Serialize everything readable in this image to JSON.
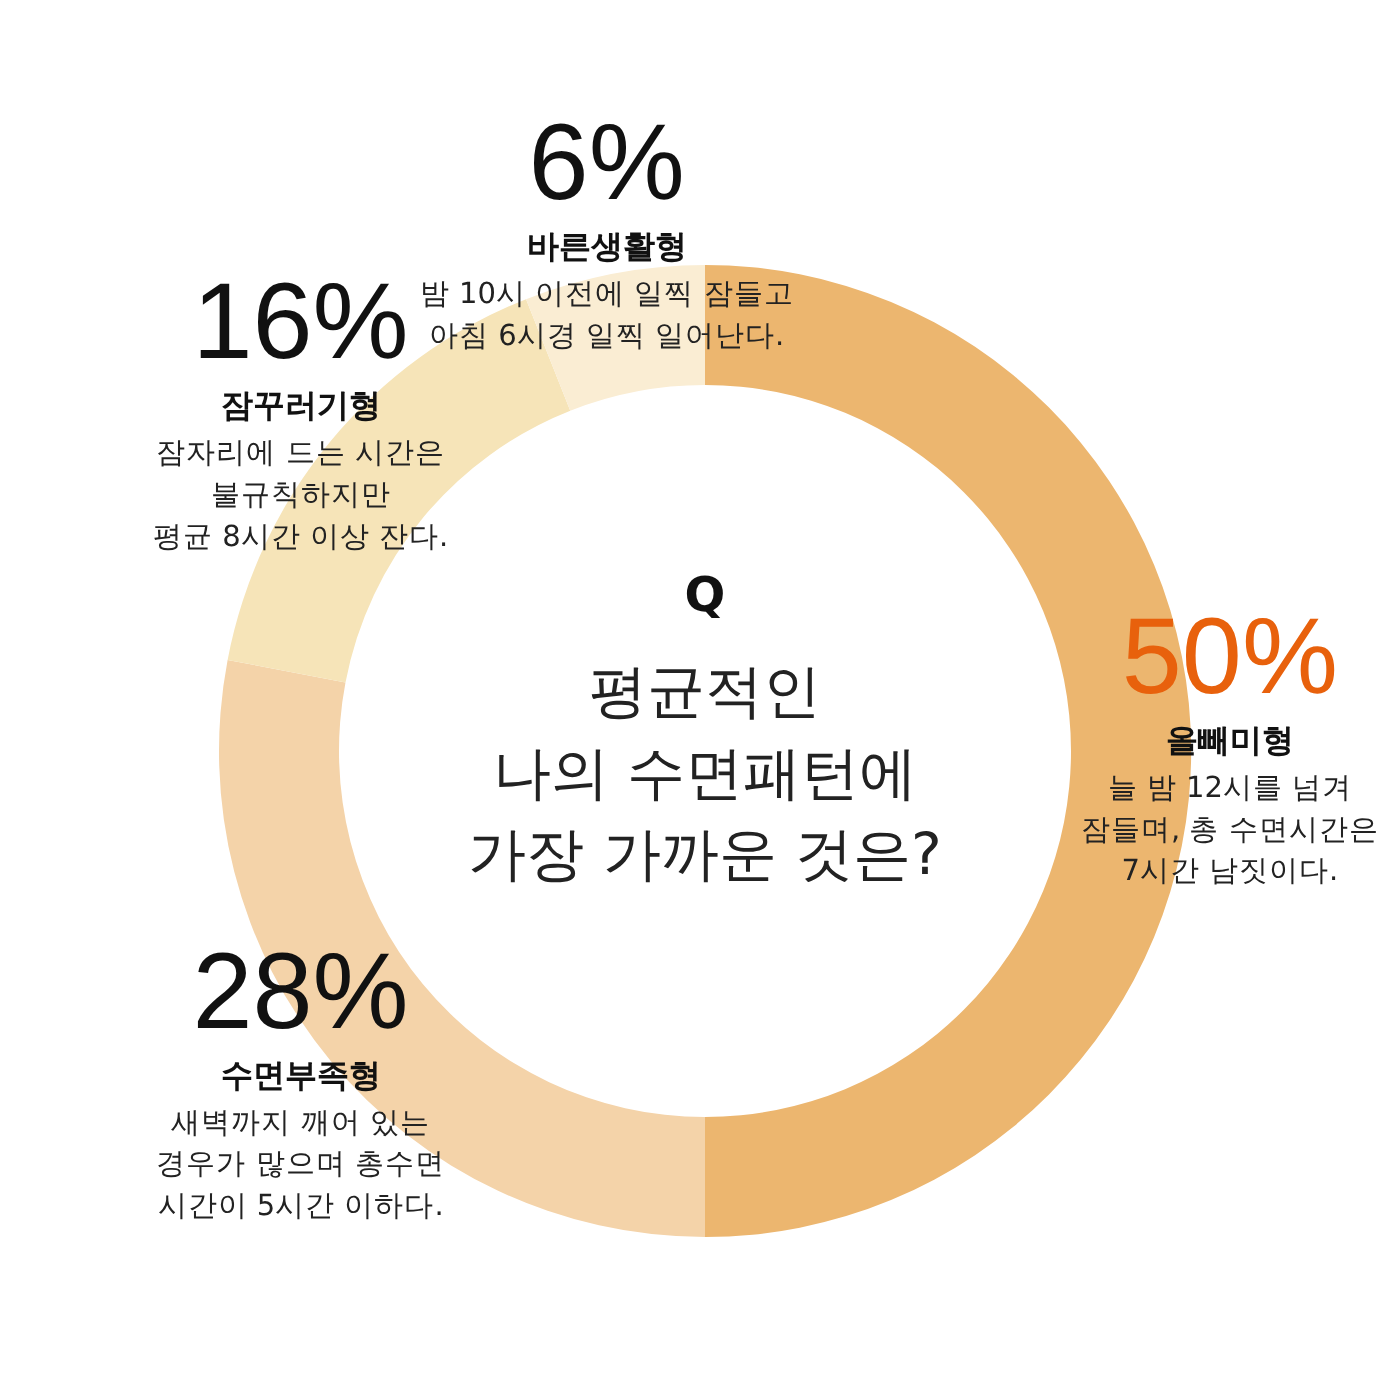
{
  "chart_data": {
    "type": "donut",
    "title": "Q",
    "subtitle": "평균적인\n나의 수면패턴에\n가장 가까운 것은?",
    "categories": [
      "올빼미형",
      "수면부족형",
      "잠꾸러기형",
      "바른생활형"
    ],
    "values": [
      50,
      28,
      16,
      6
    ],
    "colors": [
      "#ecb66f",
      "#f4d3a9",
      "#f6e4b8",
      "#faedd3"
    ],
    "value_labels": [
      "50%",
      "28%",
      "16%",
      "6%"
    ],
    "annotations": [
      "늘 밤 12시를 넘겨\n잠들며, 총 수면시간은\n7시간 남짓이다.",
      "새벽까지 깨어 있는\n경우가 많으며 총수면\n시간이 5시간 이하다.",
      "잠자리에 드는 시간은\n불규칙하지만\n평균 8시간 이상 잔다.",
      "밤 10시 이전에 일찍 잠들고\n아침 6시경 일찍 일어난다."
    ]
  }
}
